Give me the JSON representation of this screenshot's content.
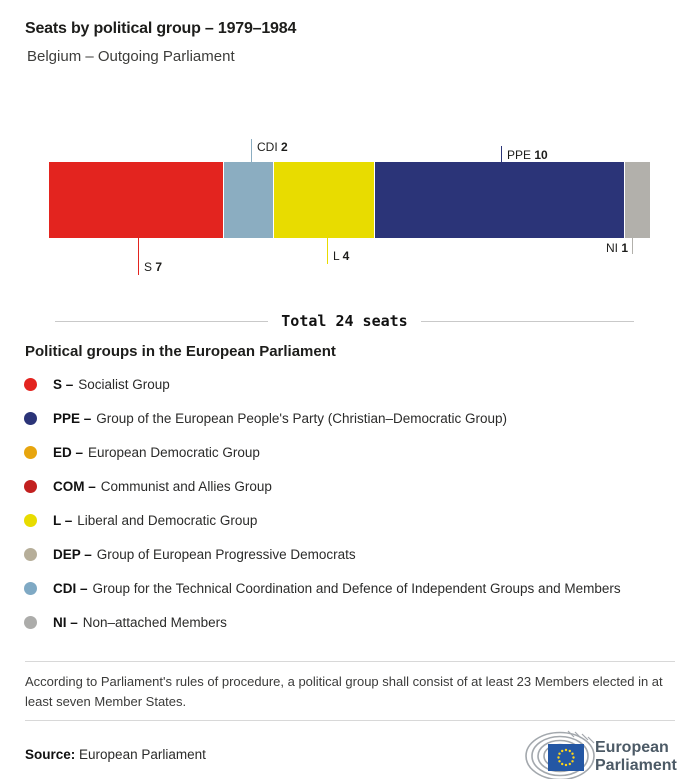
{
  "header": {
    "title": "Seats by political group – 1979–1984",
    "subtitle": "Belgium – Outgoing Parliament"
  },
  "chart_data": {
    "type": "bar",
    "title": "Seats by political group – 1979–1984",
    "subtitle": "Belgium – Outgoing Parliament",
    "orientation": "horizontal-stacked",
    "total_seats": 24,
    "total_label": "Total 24 seats",
    "segments": [
      {
        "code": "S",
        "seats": 7,
        "color": "#e3241f",
        "label_position": "below"
      },
      {
        "code": "CDI",
        "seats": 2,
        "color": "#8badc1",
        "label_position": "above"
      },
      {
        "code": "L",
        "seats": 4,
        "color": "#e8dc00",
        "label_position": "below"
      },
      {
        "code": "PPE",
        "seats": 10,
        "color": "#2b3478",
        "label_position": "above"
      },
      {
        "code": "NI",
        "seats": 1,
        "color": "#b2b0ab",
        "label_position": "below-left"
      }
    ]
  },
  "legend": {
    "heading": "Political groups in the European Parliament",
    "items": [
      {
        "label": "S –",
        "description": "Socialist Group",
        "color": "#e3241f"
      },
      {
        "label": "PPE –",
        "description": "Group of the European People's Party (Christian–Democratic Group)",
        "color": "#2b3478"
      },
      {
        "label": "ED –",
        "description": "European Democratic Group",
        "color": "#e7a50e"
      },
      {
        "label": "COM –",
        "description": "Communist and Allies Group",
        "color": "#c2201f"
      },
      {
        "label": "L –",
        "description": "Liberal and Democratic Group",
        "color": "#e8dc00"
      },
      {
        "label": "DEP –",
        "description": "Group of European Progressive Democrats",
        "color": "#b6ae99"
      },
      {
        "label": "CDI –",
        "description": "Group for the Technical Coordination and Defence of Independent Groups and Members",
        "color": "#7fa9c4"
      },
      {
        "label": "NI –",
        "description": "Non–attached Members",
        "color": "#acacaa"
      }
    ]
  },
  "footnote": "According to Parliament's rules of procedure, a political group shall consist of at least 23 Members elected in at least seven Member States.",
  "source": {
    "label": "Source:",
    "value": "European Parliament"
  },
  "logo": {
    "line1": "European",
    "line2": "Parliament"
  }
}
